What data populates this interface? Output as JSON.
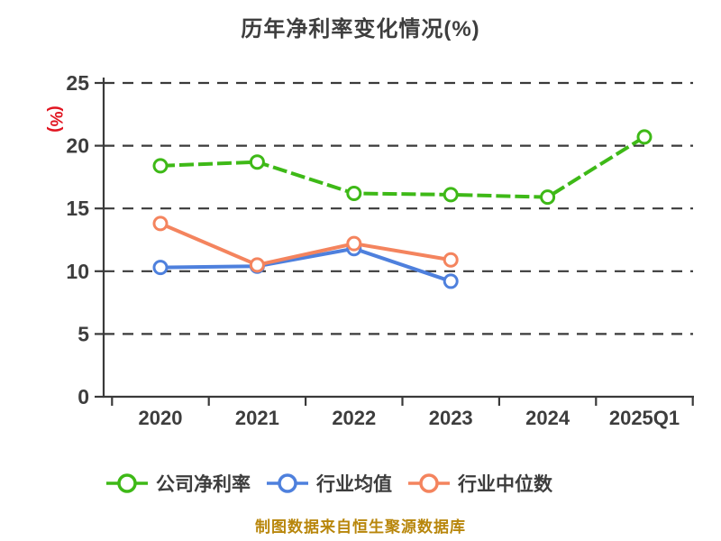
{
  "title": "历年净利率变化情况(%)",
  "y_axis_unit": "(%)",
  "footer_note": "制图数据来自恒生聚源数据库",
  "colors": {
    "background": "#ffffff",
    "title_text": "#3e3e3e",
    "axis": "#3a3a3a",
    "grid": "#3a3a3a",
    "tick_text": "#3d3d3d",
    "y_unit_label": "#e11420",
    "footer_text": "#b8860b",
    "series_company": "#3eb917",
    "series_industry_avg": "#4e80dd",
    "series_industry_median": "#f4845e"
  },
  "chart_data": {
    "type": "line",
    "title": "历年净利率变化情况(%)",
    "ylabel": "(%)",
    "xlabel": "",
    "categories": [
      "2020",
      "2021",
      "2022",
      "2023",
      "2024",
      "2025Q1"
    ],
    "series": [
      {
        "name": "公司净利率",
        "color": "#3eb917",
        "line_style": "dashed",
        "values": [
          18.4,
          18.7,
          16.2,
          16.1,
          15.9,
          20.7
        ]
      },
      {
        "name": "行业均值",
        "color": "#4e80dd",
        "line_style": "solid",
        "values": [
          10.3,
          10.4,
          11.8,
          9.2,
          null,
          null
        ]
      },
      {
        "name": "行业中位数",
        "color": "#f4845e",
        "line_style": "solid",
        "values": [
          13.8,
          10.5,
          12.2,
          10.9,
          null,
          null
        ]
      }
    ],
    "ylim": [
      0,
      25
    ],
    "yticks": [
      0,
      5,
      10,
      15,
      20,
      25
    ],
    "grid": "horizontal-dashed",
    "legend_position": "bottom",
    "marker": "circle-white-fill"
  }
}
